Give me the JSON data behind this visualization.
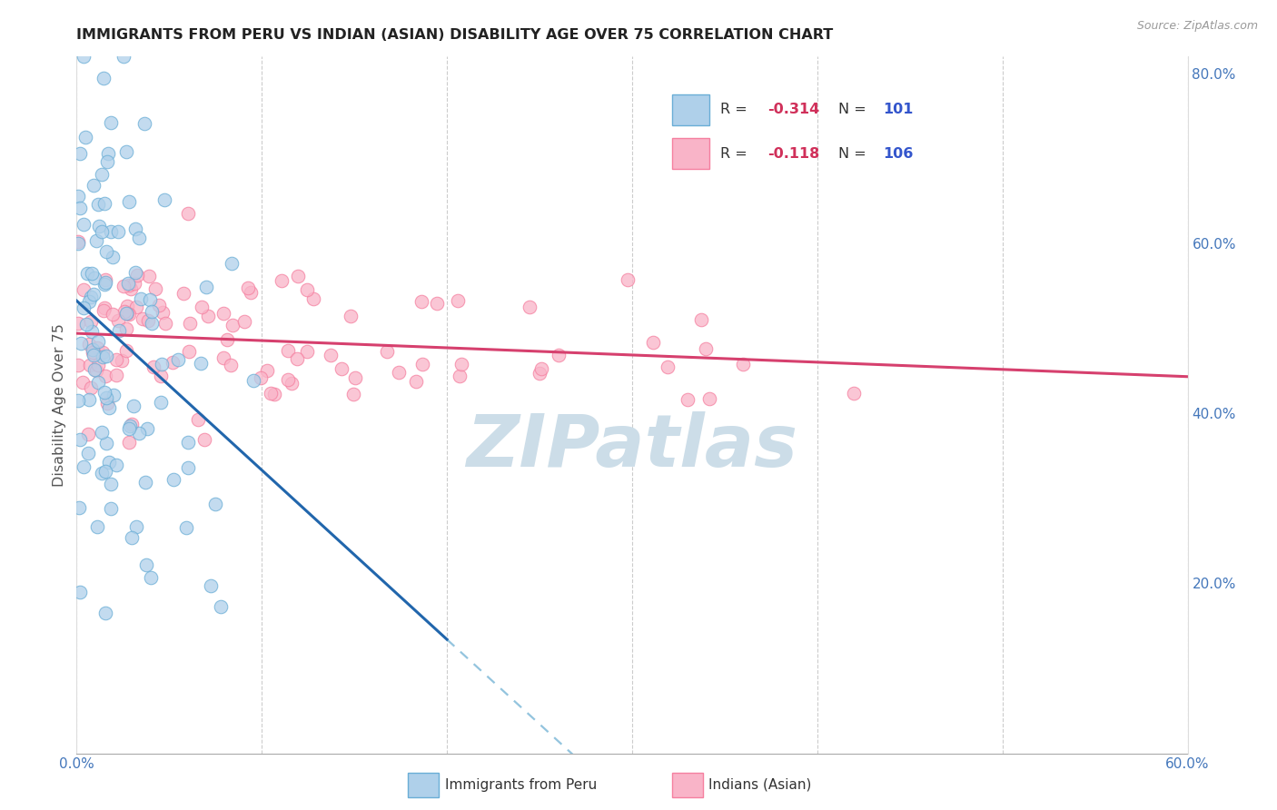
{
  "title": "IMMIGRANTS FROM PERU VS INDIAN (ASIAN) DISABILITY AGE OVER 75 CORRELATION CHART",
  "source": "Source: ZipAtlas.com",
  "ylabel": "Disability Age Over 75",
  "x_min": 0.0,
  "x_max": 0.6,
  "y_min": 0.0,
  "y_max": 0.82,
  "color_peru_face": "#afd0ea",
  "color_peru_edge": "#6aaed6",
  "color_indian_face": "#f9b4c8",
  "color_indian_edge": "#f580a0",
  "color_trendline_peru": "#2166ac",
  "color_trendline_indian": "#d6406e",
  "color_dashed": "#93c4de",
  "watermark": "ZIPatlas",
  "watermark_color": "#ccdde8",
  "grid_color": "#cccccc",
  "tick_color": "#4477bb",
  "title_color": "#222222",
  "ylabel_color": "#555555",
  "legend_r_color": "#d0305a",
  "legend_n_color": "#3355cc",
  "legend_label_color": "#333333"
}
